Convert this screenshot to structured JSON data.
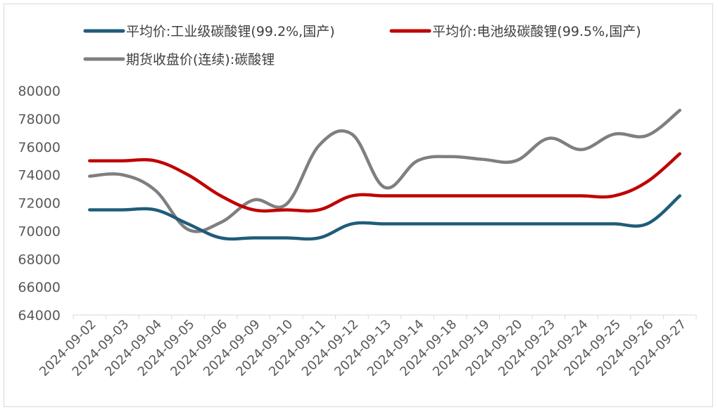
{
  "chart_data": {
    "type": "line",
    "categories": [
      "2024-09-02",
      "2024-09-03",
      "2024-09-04",
      "2024-09-05",
      "2024-09-06",
      "2024-09-09",
      "2024-09-10",
      "2024-09-11",
      "2024-09-12",
      "2024-09-13",
      "2024-09-14",
      "2024-09-18",
      "2024-09-19",
      "2024-09-20",
      "2024-09-23",
      "2024-09-24",
      "2024-09-25",
      "2024-09-26",
      "2024-09-27"
    ],
    "series": [
      {
        "name": "平均价:工业级碳酸锂(99.2%,国产)",
        "color": "#1f5c7a",
        "values": [
          71500,
          71500,
          71500,
          70500,
          69500,
          69500,
          69500,
          69500,
          70500,
          70500,
          70500,
          70500,
          70500,
          70500,
          70500,
          70500,
          70500,
          70500,
          72500
        ]
      },
      {
        "name": "平均价:电池级碳酸锂(99.5%,国产)",
        "color": "#c00000",
        "values": [
          75000,
          75000,
          75000,
          74000,
          72500,
          71500,
          71500,
          71500,
          72500,
          72500,
          72500,
          72500,
          72500,
          72500,
          72500,
          72500,
          72500,
          73500,
          75500
        ]
      },
      {
        "name": "期货收盘价(连续):碳酸锂",
        "color": "#7f7f7f",
        "values": [
          73900,
          74000,
          72900,
          70100,
          70600,
          72200,
          71900,
          76100,
          76900,
          73100,
          75000,
          75300,
          75100,
          75000,
          76600,
          75800,
          76900,
          76800,
          78600
        ]
      }
    ],
    "yticks": [
      64000,
      66000,
      68000,
      70000,
      72000,
      74000,
      76000,
      78000,
      80000
    ],
    "ylim": [
      64000,
      80000
    ],
    "xlabel": "",
    "ylabel": "",
    "grid": false,
    "legend_position": "top"
  }
}
